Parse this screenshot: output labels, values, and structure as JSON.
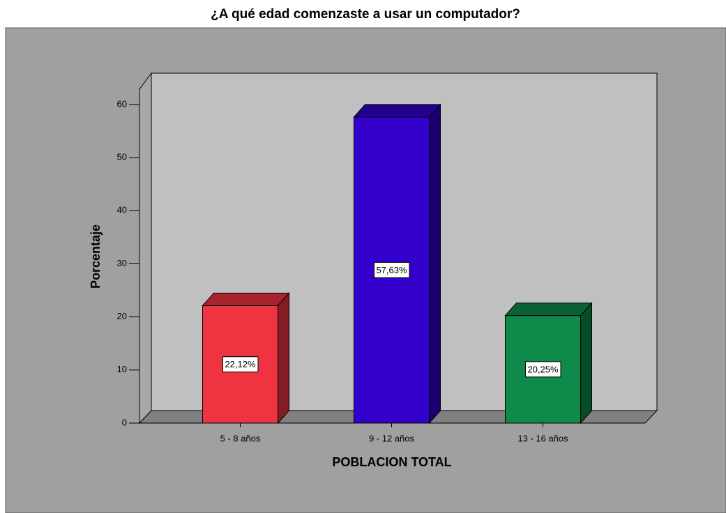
{
  "chart_data": {
    "type": "bar3d",
    "title": "¿A qué edad comenzaste a usar un computador?",
    "categories": [
      "5 - 8 años",
      "9 - 12 años",
      "13 - 16 años"
    ],
    "values": [
      22.12,
      57.63,
      20.25
    ],
    "value_labels": [
      "22,12%",
      "57,63%",
      "20,25%"
    ],
    "colors": [
      "#ef3340",
      "#3300cc",
      "#0f8a4a"
    ],
    "xlabel": "POBLACION TOTAL",
    "ylabel": "Porcentaje",
    "ylim": [
      0,
      63
    ],
    "yticks": [
      0,
      10,
      20,
      30,
      40,
      50,
      60
    ]
  }
}
